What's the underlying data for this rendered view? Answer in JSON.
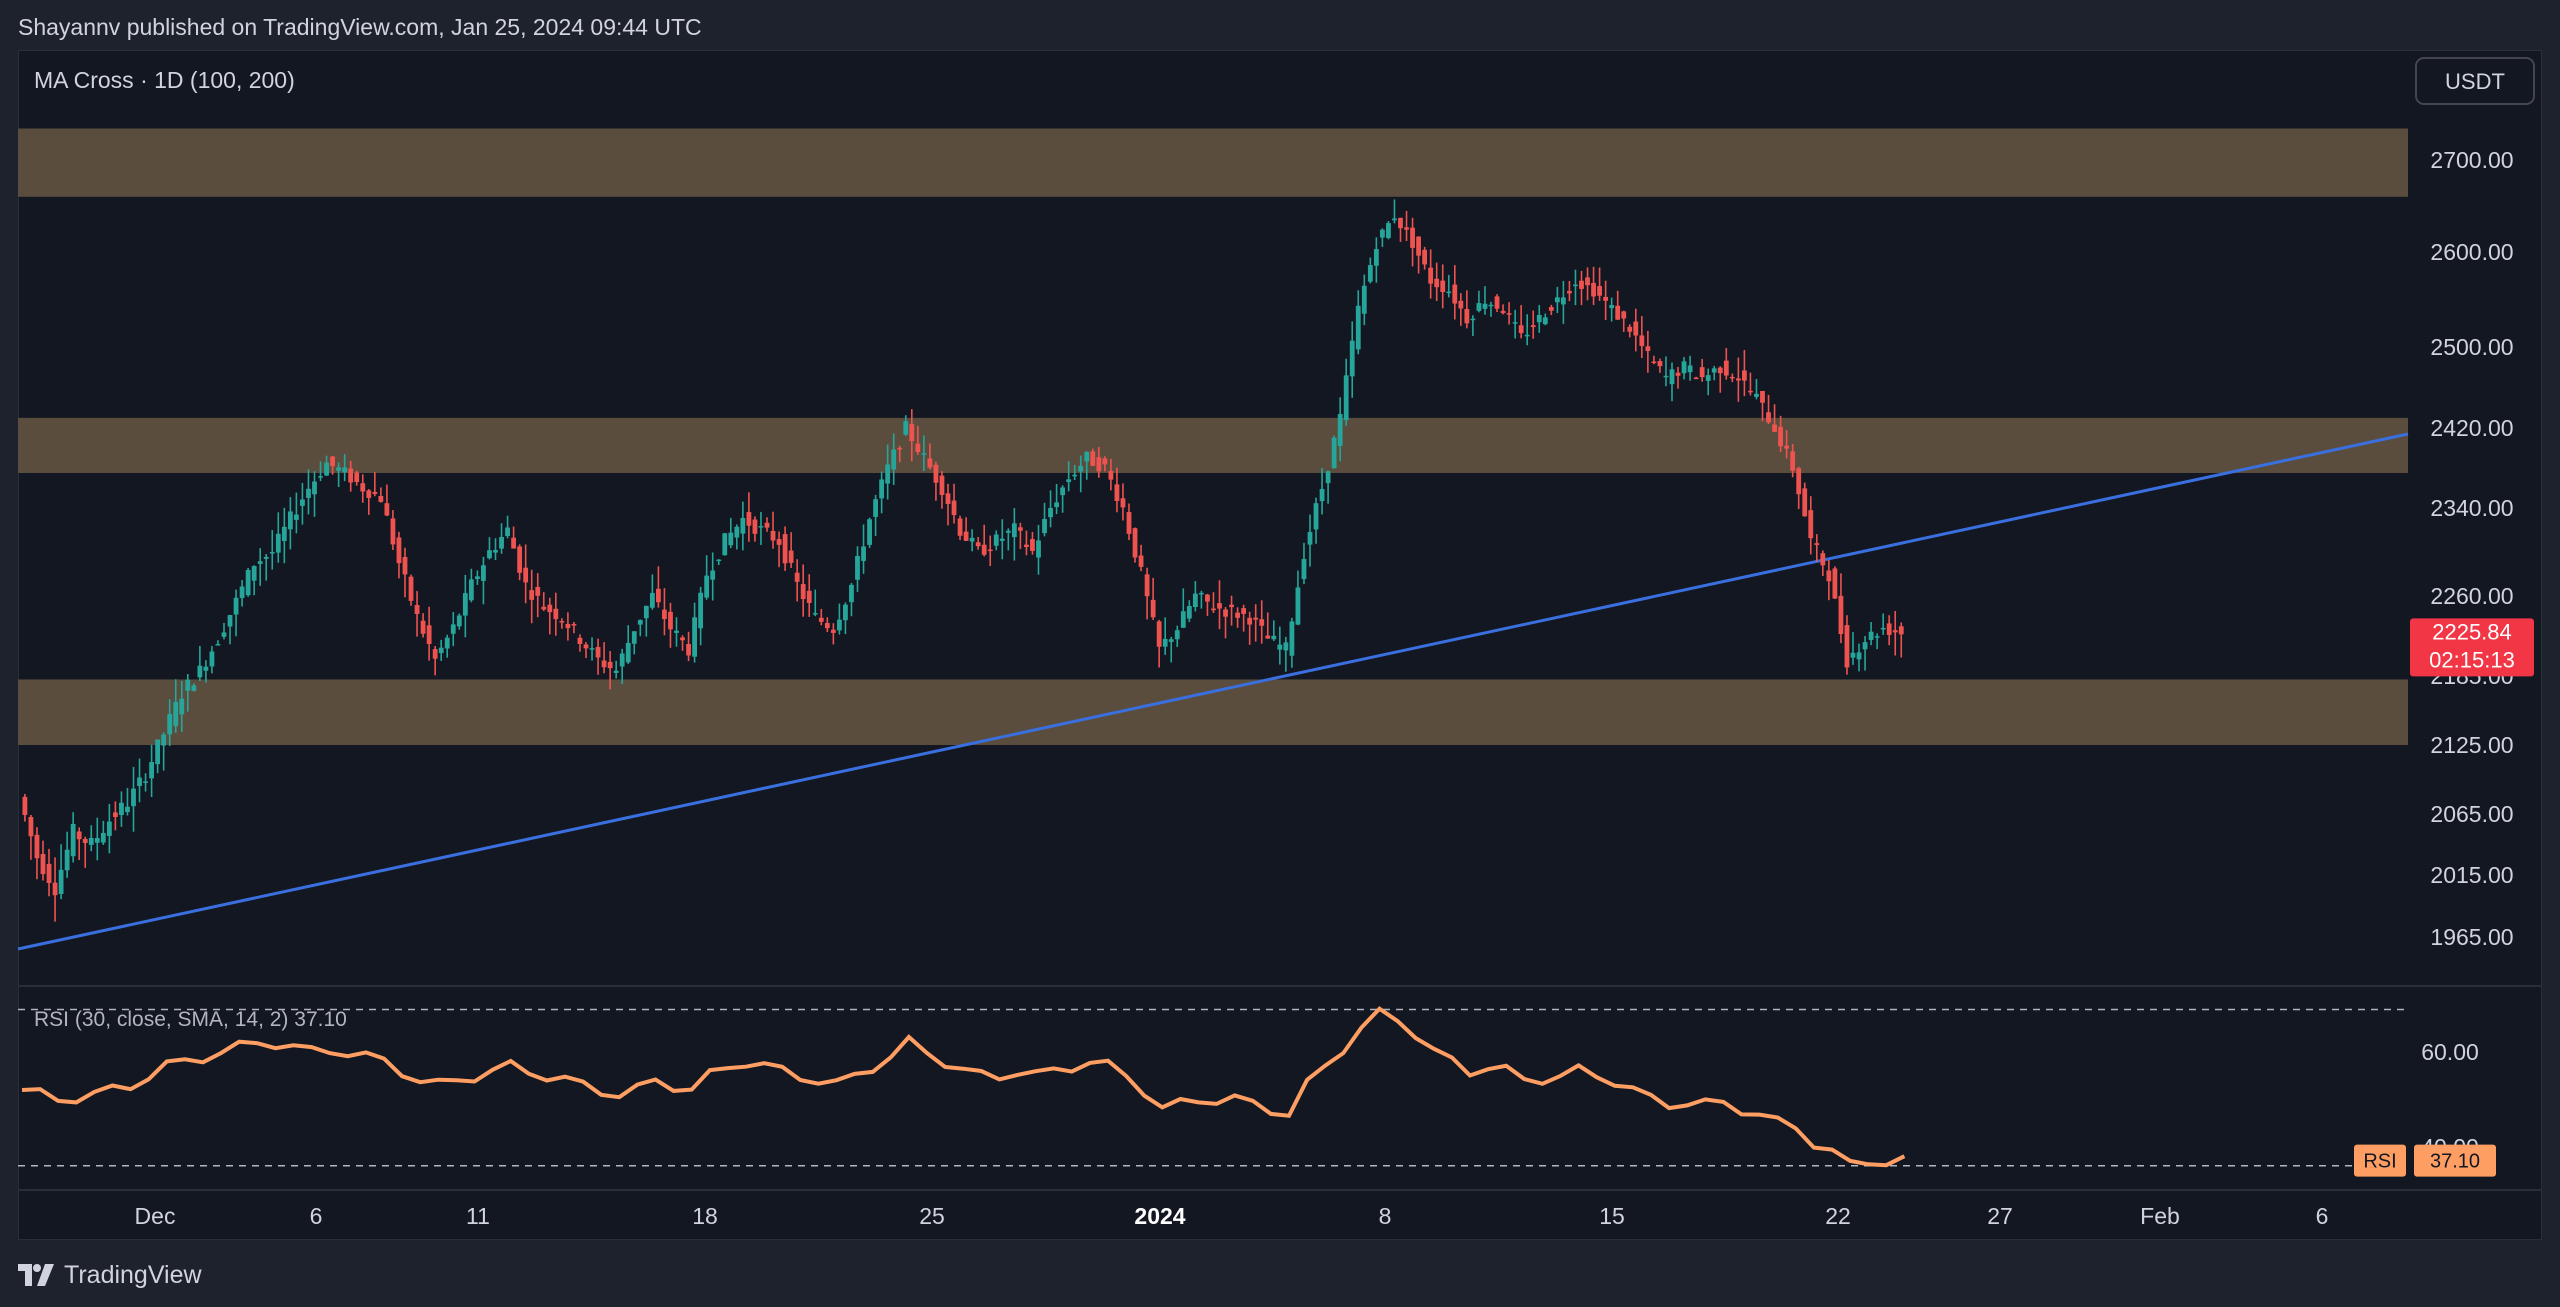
{
  "header": {
    "attribution": "Shayannv published on TradingView.com, Jan 25, 2024 09:44 UTC"
  },
  "footer": {
    "brand": "TradingView"
  },
  "currency_button": "USDT",
  "price_tag": {
    "value": "2225.84",
    "countdown": "02:15:13"
  },
  "rsi_tag": {
    "label": "RSI",
    "value": "37.10"
  },
  "colors": {
    "up": "#26a69a",
    "down": "#ef5350",
    "zone": "#5e5040",
    "trendline": "#3a6fe0",
    "rsi": "#ff9e62",
    "price_tag": "#f23645",
    "background": "#131722"
  },
  "chart_data": [
    {
      "type": "candlestick",
      "title": "MA Cross · 1D (100, 200)",
      "y_ticks": [
        "2700.00",
        "2600.00",
        "2500.00",
        "2420.00",
        "2340.00",
        "2260.00",
        "2185.00",
        "2125.00",
        "2065.00",
        "2015.00",
        "1965.00"
      ],
      "x_ticks": [
        {
          "label": "Dec",
          "bold": false
        },
        {
          "label": "6",
          "bold": false
        },
        {
          "label": "11",
          "bold": false
        },
        {
          "label": "18",
          "bold": false
        },
        {
          "label": "25",
          "bold": false
        },
        {
          "label": "2024",
          "bold": true
        },
        {
          "label": "8",
          "bold": false
        },
        {
          "label": "15",
          "bold": false
        },
        {
          "label": "22",
          "bold": false
        },
        {
          "label": "27",
          "bold": false
        },
        {
          "label": "Feb",
          "bold": false
        },
        {
          "label": "6",
          "bold": false
        }
      ],
      "zones": [
        {
          "from": 2660,
          "to": 2735
        },
        {
          "from": 2375,
          "to": 2430
        },
        {
          "from": 2125,
          "to": 2182
        }
      ],
      "trendline": {
        "start": 1955,
        "end": 2414
      },
      "last_price": 2225.84,
      "price_path": [
        2080,
        2030,
        2005,
        2050,
        2040,
        2060,
        2075,
        2100,
        2135,
        2170,
        2190,
        2220,
        2255,
        2290,
        2300,
        2330,
        2360,
        2385,
        2375,
        2360,
        2350,
        2290,
        2240,
        2200,
        2230,
        2270,
        2300,
        2320,
        2270,
        2250,
        2240,
        2220,
        2200,
        2190,
        2230,
        2260,
        2230,
        2210,
        2280,
        2310,
        2330,
        2320,
        2310,
        2270,
        2240,
        2230,
        2270,
        2330,
        2380,
        2420,
        2390,
        2360,
        2320,
        2300,
        2310,
        2320,
        2300,
        2340,
        2370,
        2390,
        2380,
        2340,
        2280,
        2210,
        2230,
        2260,
        2250,
        2245,
        2240,
        2220,
        2210,
        2300,
        2360,
        2430,
        2540,
        2610,
        2640,
        2610,
        2570,
        2560,
        2530,
        2550,
        2540,
        2510,
        2530,
        2550,
        2570,
        2560,
        2540,
        2520,
        2490,
        2470,
        2480,
        2470,
        2480,
        2470,
        2450,
        2420,
        2380,
        2310,
        2280,
        2200,
        2220,
        2230,
        2226
      ]
    },
    {
      "type": "line",
      "title": "RSI (30, close, SMA, 14, 2) 37.10",
      "y_ticks": [
        "60.00",
        "40.00"
      ],
      "bands": [
        69,
        36
      ],
      "ylim": [
        33,
        71
      ],
      "values": [
        52,
        51,
        50,
        50.5,
        51,
        52,
        53,
        55,
        57,
        58,
        59,
        60,
        61,
        62,
        62,
        61,
        60,
        60.5,
        60,
        59,
        58,
        56,
        54,
        53,
        54,
        55,
        56,
        57,
        56,
        55,
        54,
        53,
        52,
        51,
        52,
        54,
        53,
        52,
        55,
        57,
        58,
        57,
        56,
        55,
        54,
        53,
        55,
        57,
        59,
        62,
        60,
        58,
        56,
        55,
        55,
        56,
        55,
        56,
        57,
        58,
        57,
        55,
        52,
        48,
        49,
        50,
        50,
        50,
        49,
        48,
        47,
        53,
        57,
        61,
        65,
        68,
        67,
        64,
        60,
        58,
        56,
        57,
        56,
        54,
        54.5,
        55,
        56,
        55,
        54,
        52,
        50,
        49,
        49.5,
        49,
        49,
        48,
        47,
        45,
        44,
        41,
        39,
        36,
        37,
        37,
        37.1
      ]
    }
  ]
}
